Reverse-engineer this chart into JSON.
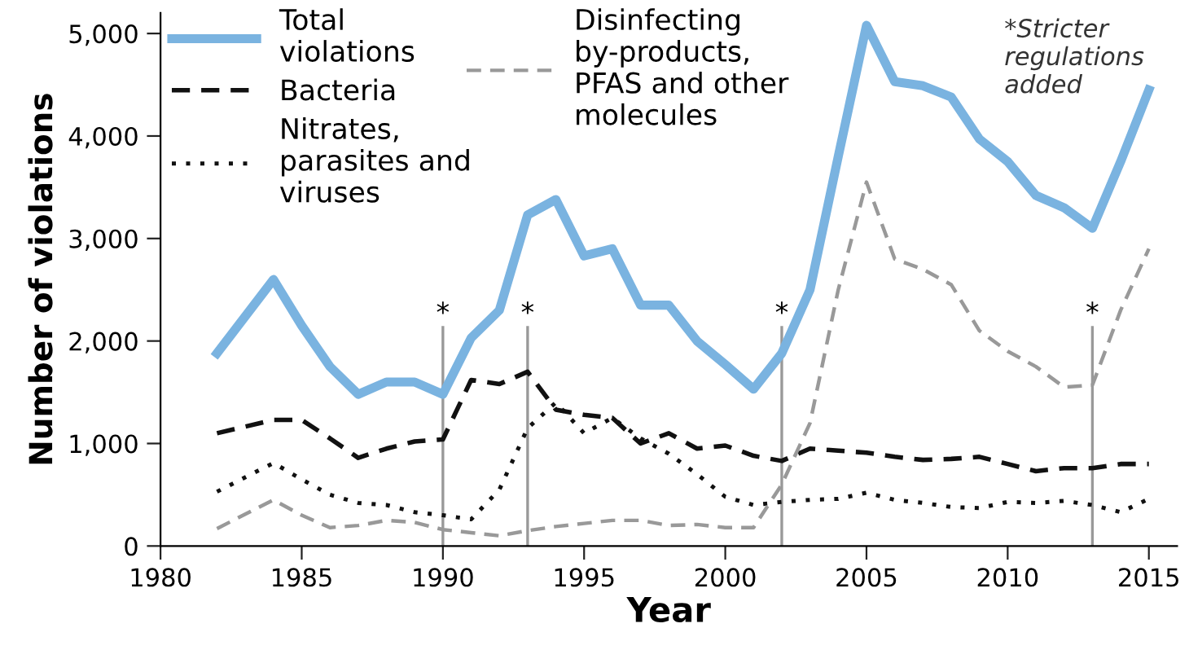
{
  "chart_data": {
    "type": "line",
    "xlabel": "Year",
    "ylabel": "Number of violations",
    "x": [
      1982,
      1984,
      1985,
      1986,
      1987,
      1988,
      1989,
      1990,
      1991,
      1992,
      1993,
      1994,
      1995,
      1996,
      1997,
      1998,
      1999,
      2000,
      2001,
      2002,
      2003,
      2004,
      2005,
      2006,
      2007,
      2008,
      2009,
      2010,
      2011,
      2012,
      2013,
      2014,
      2015
    ],
    "series": [
      {
        "name": "Total\nviolations",
        "color": "#7ab3e0",
        "line_style": "solid",
        "values": [
          1880,
          2600,
          2150,
          1750,
          1480,
          1600,
          1600,
          1480,
          2030,
          2300,
          3230,
          3380,
          2830,
          2900,
          2350,
          2350,
          2000,
          1770,
          1530,
          1880,
          2500,
          3800,
          5080,
          4530,
          4490,
          4380,
          3970,
          3750,
          3420,
          3300,
          3100,
          3750,
          4450
        ]
      },
      {
        "name": "Bacteria",
        "color": "#111111",
        "line_style": "dashed",
        "values": [
          1100,
          1230,
          1230,
          1050,
          860,
          950,
          1020,
          1040,
          1620,
          1580,
          1700,
          1330,
          1280,
          1250,
          1000,
          1100,
          950,
          980,
          880,
          830,
          950,
          930,
          910,
          870,
          840,
          850,
          870,
          800,
          730,
          760,
          760,
          800,
          800
        ]
      },
      {
        "name": "Nitrates,\nparasites and\nviruses",
        "color": "#111111",
        "line_style": "dotted",
        "values": [
          530,
          810,
          650,
          500,
          420,
          400,
          330,
          300,
          260,
          550,
          1150,
          1400,
          1100,
          1250,
          1050,
          900,
          700,
          480,
          400,
          430,
          450,
          460,
          520,
          450,
          420,
          380,
          370,
          430,
          420,
          440,
          400,
          330,
          460
        ]
      },
      {
        "name": "Disinfecting\nby-products,\nPFAS and other\nmolecules",
        "color": "#999999",
        "line_style": "dashed",
        "values": [
          170,
          450,
          300,
          180,
          200,
          250,
          230,
          160,
          130,
          100,
          150,
          190,
          220,
          250,
          250,
          200,
          210,
          180,
          180,
          600,
          1200,
          2500,
          3550,
          2800,
          2700,
          2550,
          2100,
          1900,
          1750,
          1550,
          1570,
          2300,
          2900
        ]
      }
    ],
    "xlim": [
      1980,
      2016
    ],
    "xticks": [
      1980,
      1985,
      1990,
      1995,
      2000,
      2005,
      2010,
      2015
    ],
    "ylim": [
      0,
      5200
    ],
    "yticks": [
      0,
      {
        "value": 1000,
        "label": "1,000"
      },
      {
        "value": 2000,
        "label": "2,000"
      },
      {
        "value": 3000,
        "label": "3,000"
      },
      {
        "value": 4000,
        "label": "4,000"
      },
      {
        "value": 5000,
        "label": "5,000"
      }
    ],
    "ref_lines": [
      {
        "axis": "x",
        "value": 1990,
        "label": "*",
        "color": "#999999"
      },
      {
        "axis": "x",
        "value": 1993,
        "label": "*",
        "color": "#999999"
      },
      {
        "axis": "x",
        "value": 2002,
        "label": "*",
        "color": "#999999"
      },
      {
        "axis": "x",
        "value": 2013,
        "label": "*",
        "color": "#999999"
      }
    ],
    "annotations": [
      "*Stricter\nregulations\nadded"
    ],
    "grid": false,
    "legend": "top left",
    "marker": "none"
  }
}
